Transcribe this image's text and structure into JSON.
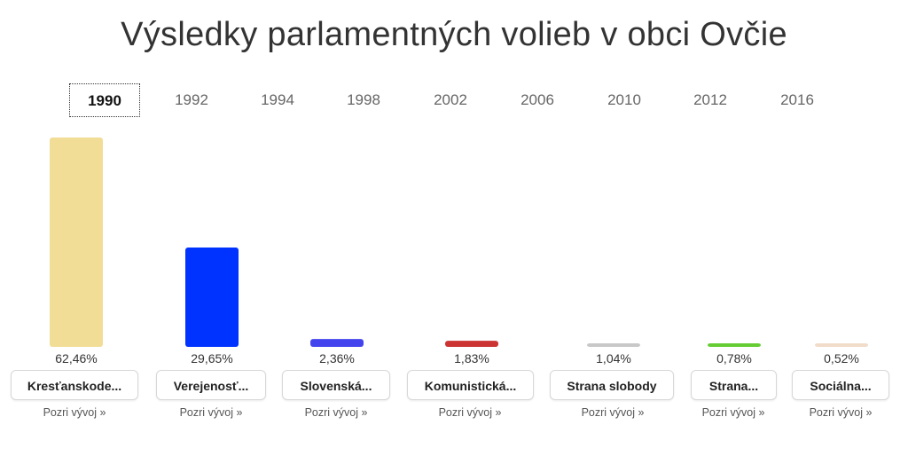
{
  "page_title": "Výsledky parlamentných volieb v obci Ovčie",
  "years": [
    "1990",
    "1992",
    "1994",
    "1998",
    "2002",
    "2006",
    "2010",
    "2012",
    "2016"
  ],
  "active_year": "1990",
  "trend_label": "Pozri vývoj »",
  "chart_data": {
    "type": "bar",
    "categories": [
      "Kresťanskode...",
      "Verejenosť...",
      "Slovenská...",
      "Komunistická...",
      "Strana slobody",
      "Strana...",
      "Sociálna..."
    ],
    "values": [
      62.46,
      29.65,
      2.36,
      1.83,
      1.04,
      0.78,
      0.52
    ],
    "value_labels": [
      "62,46%",
      "29,65%",
      "2,36%",
      "1,83%",
      "1,04%",
      "0,78%",
      "0,52%"
    ],
    "colors": [
      "#f2dd97",
      "#0033ff",
      "#4444ee",
      "#cc3333",
      "#c8c8c8",
      "#66cc33",
      "#f0dcc8"
    ],
    "title": "",
    "xlabel": "",
    "ylabel": "",
    "ylim": [
      0,
      62.46
    ],
    "grid": false
  }
}
